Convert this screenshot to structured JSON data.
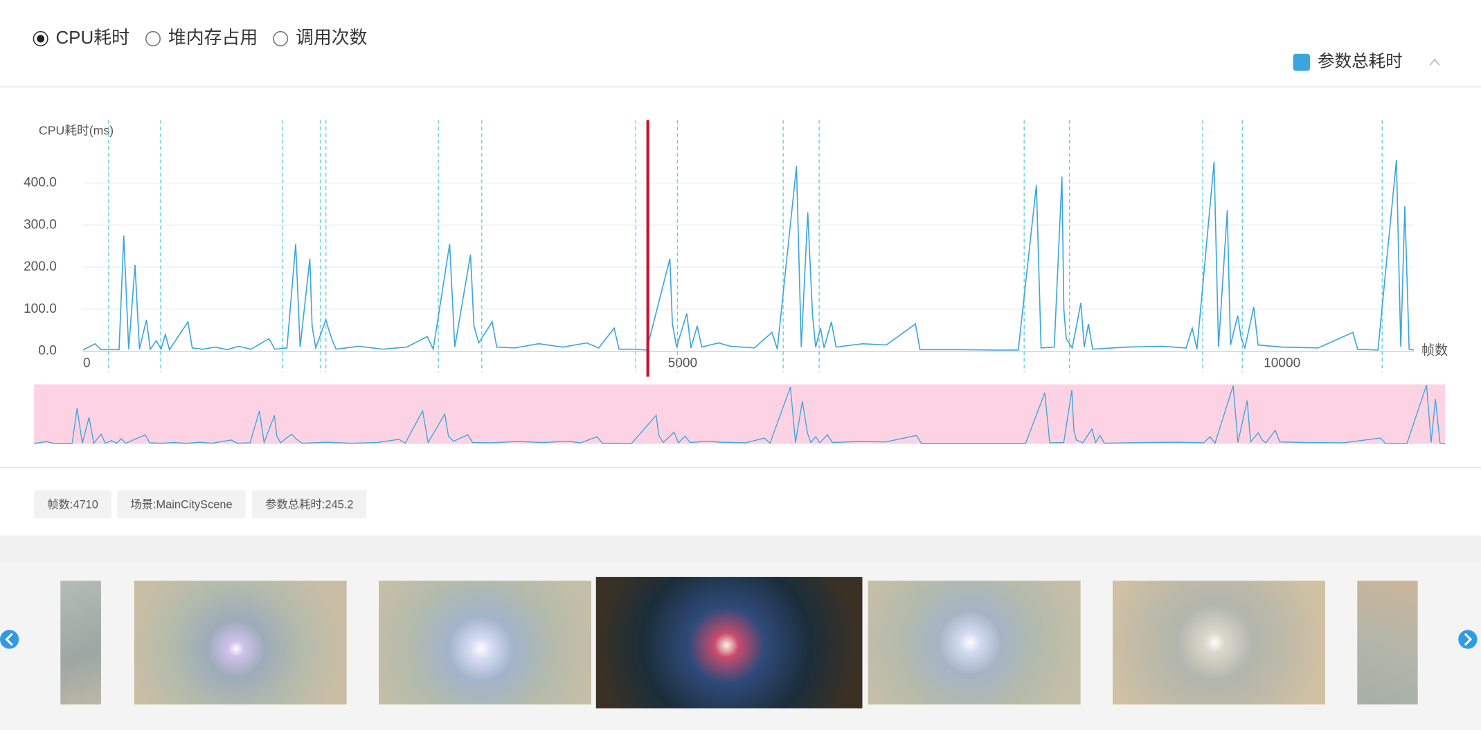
{
  "metric_options": [
    "CPU耗时",
    "堆内存占用",
    "调用次数"
  ],
  "info_chips": [
    "帧数:4710",
    "场景:MainCityScene",
    "参数总耗时:245.2"
  ],
  "chart_data": {
    "type": "line",
    "ylabel": "CPU耗时(ms)",
    "xlabel": "帧数",
    "ylim": [
      0,
      550
    ],
    "xlim": [
      0,
      11100
    ],
    "yticks": [
      {
        "value": 0,
        "label": "0.0"
      },
      {
        "value": 100,
        "label": "100.0"
      },
      {
        "value": 200,
        "label": "200.0"
      },
      {
        "value": 300,
        "label": "300.0"
      },
      {
        "value": 400,
        "label": "400.0"
      }
    ],
    "xticks": [
      0,
      5000,
      10000
    ],
    "grid": true,
    "cursor": 4710,
    "cursor_color": "#c8102e",
    "markers": [
      213,
      646,
      1663,
      1978,
      2025,
      2963,
      3325,
      4610,
      4957,
      5839,
      6139,
      7849,
      8227,
      9338,
      9669,
      10835
    ],
    "marker_color": "#5fd0e0",
    "overview_ylim": [
      0,
      460
    ],
    "overview_color": "#fdd3e4",
    "x": [
      0,
      100,
      150,
      300,
      339,
      380,
      433,
      470,
      528,
      560,
      610,
      650,
      686,
      720,
      875,
      910,
      1000,
      1100,
      1200,
      1300,
      1400,
      1550,
      1600,
      1700,
      1773,
      1810,
      1891,
      1910,
      1940,
      2025,
      2050,
      2080,
      2110,
      2300,
      2500,
      2700,
      2870,
      2920,
      3057,
      3100,
      3231,
      3260,
      3300,
      3412,
      3450,
      3600,
      3800,
      4000,
      4200,
      4300,
      4429,
      4470,
      4600,
      4700,
      4894,
      4915,
      4950,
      5035,
      5070,
      5122,
      5160,
      5300,
      5400,
      5600,
      5745,
      5790,
      5950,
      5990,
      6044,
      6084,
      6110,
      6150,
      6180,
      6241,
      6280,
      6500,
      6700,
      6942,
      6980,
      7300,
      7600,
      7800,
      7951,
      7990,
      8100,
      8164,
      8180,
      8200,
      8250,
      8322,
      8350,
      8385,
      8420,
      8700,
      9000,
      9200,
      9251,
      9290,
      9433,
      9470,
      9543,
      9570,
      9630,
      9660,
      9690,
      9764,
      9800,
      10000,
      10300,
      10591,
      10630,
      10800,
      10954,
      10990,
      11024,
      11060,
      11100
    ],
    "series": [
      {
        "name": "参数总耗时",
        "color": "#3ba6dd",
        "values": [
          3,
          18,
          4,
          4,
          275,
          5,
          205,
          5,
          75,
          5,
          25,
          5,
          40,
          4,
          70,
          8,
          5,
          10,
          4,
          12,
          5,
          30,
          5,
          8,
          255,
          10,
          220,
          60,
          8,
          75,
          50,
          25,
          5,
          12,
          5,
          10,
          35,
          5,
          255,
          10,
          230,
          60,
          20,
          70,
          10,
          8,
          18,
          10,
          20,
          8,
          55,
          5,
          5,
          3,
          220,
          65,
          10,
          90,
          8,
          60,
          10,
          20,
          12,
          8,
          45,
          5,
          440,
          10,
          330,
          85,
          10,
          55,
          8,
          70,
          10,
          18,
          15,
          65,
          4,
          4,
          3,
          3,
          395,
          8,
          10,
          415,
          100,
          30,
          8,
          115,
          10,
          65,
          5,
          10,
          12,
          8,
          55,
          5,
          450,
          10,
          335,
          15,
          85,
          30,
          8,
          105,
          15,
          10,
          8,
          45,
          5,
          3,
          455,
          10,
          345,
          5,
          3
        ]
      }
    ]
  }
}
